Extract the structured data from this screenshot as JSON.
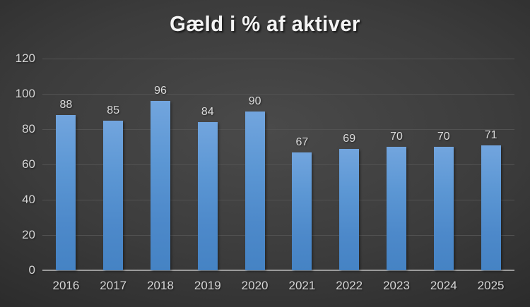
{
  "chart_data": {
    "type": "bar",
    "title": "Gæld i % af aktiver",
    "categories": [
      "2016",
      "2017",
      "2018",
      "2019",
      "2020",
      "2021",
      "2022",
      "2023",
      "2024",
      "2025"
    ],
    "values": [
      88,
      85,
      96,
      84,
      90,
      67,
      69,
      70,
      70,
      71
    ],
    "xlabel": "",
    "ylabel": "",
    "ylim": [
      0,
      120
    ],
    "yticks": [
      0,
      20,
      40,
      60,
      80,
      100,
      120
    ],
    "grid": "horizontal",
    "legend": "none",
    "data_labels": true
  },
  "colors": {
    "background_center": "#4a4a4a",
    "background_edge": "#1c1c1c",
    "bar_gradient_top": "#72a5de",
    "bar_gradient_bottom": "#4583c4",
    "gridline": "#525252",
    "axis_baseline": "#9b9b9b",
    "axis_label": "#d6d6d6",
    "data_label": "#dcdcdc",
    "title": "#f4f4f4"
  }
}
